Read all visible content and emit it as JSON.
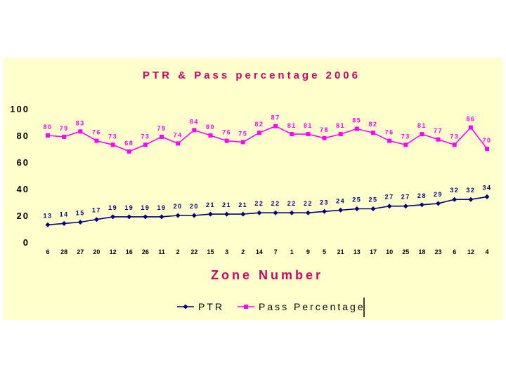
{
  "chart_data": {
    "type": "line",
    "title": "PTR & Pass percentage 2006",
    "xlabel": "Zone Number",
    "ylabel": "",
    "ylim": [
      0,
      100
    ],
    "yticks": [
      0,
      20,
      40,
      60,
      80,
      100
    ],
    "grid": false,
    "legend_position": "bottom",
    "categories": [
      "6",
      "28",
      "27",
      "20",
      "12",
      "16",
      "26",
      "11",
      "2",
      "22",
      "15",
      "3",
      "2",
      "14",
      "7",
      "1",
      "9",
      "5",
      "21",
      "13",
      "17",
      "10",
      "25",
      "18",
      "23",
      "6",
      "12",
      "4"
    ],
    "series": [
      {
        "name": "PTR",
        "color": "#000080",
        "marker": "diamond",
        "values": [
          13,
          14,
          15,
          17,
          19,
          19,
          19,
          19,
          20,
          20,
          21,
          21,
          21,
          22,
          22,
          22,
          22,
          23,
          24,
          25,
          25,
          27,
          27,
          28,
          29,
          32,
          32,
          34
        ]
      },
      {
        "name": "Pass Percentage",
        "color": "#ff00ff",
        "marker": "square",
        "values": [
          80,
          79,
          83,
          76,
          73,
          68,
          73,
          79,
          74,
          84,
          80,
          76,
          75,
          82,
          87,
          81,
          81,
          78,
          81,
          85,
          82,
          76,
          73,
          81,
          77,
          73,
          86,
          70
        ]
      }
    ],
    "colors": {
      "background": "#ffffcc",
      "title": "#cc0066",
      "axis_text": "#000000"
    }
  }
}
